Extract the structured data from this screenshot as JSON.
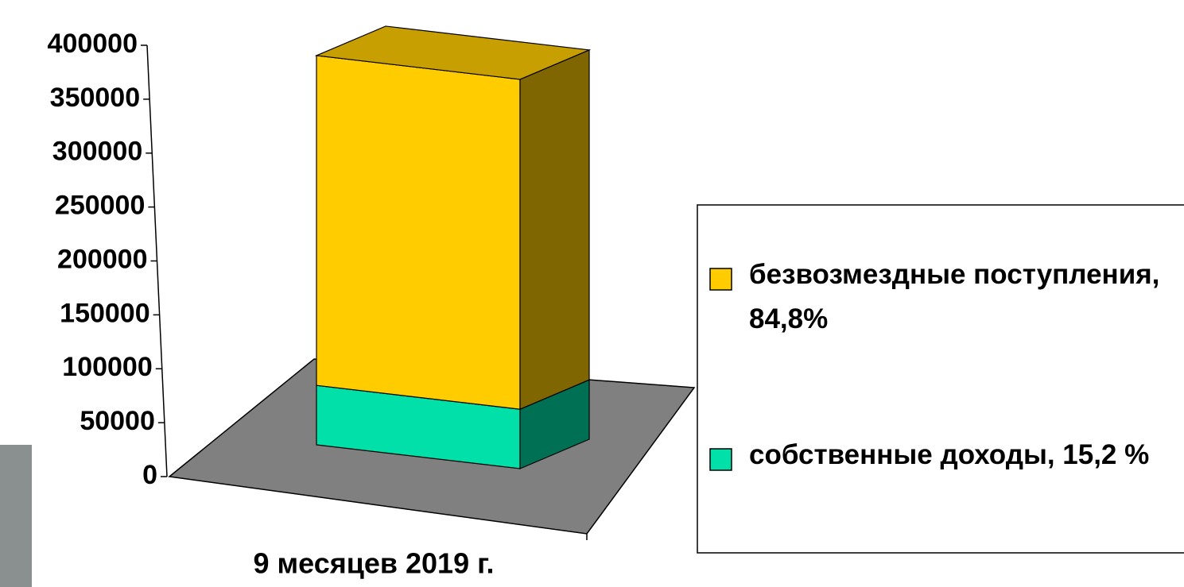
{
  "chart_data": {
    "type": "bar3d_stacked",
    "categories": [
      "9 месяцев 2019 г."
    ],
    "series": [
      {
        "name": "собственные доходы, 15,2 %",
        "color": "#00e0a8",
        "values": [
          58000
        ]
      },
      {
        "name": "безвозмездные поступления, 84,8%",
        "color": "#ffcc00",
        "values": [
          322000
        ]
      }
    ],
    "ylim": [
      0,
      400000
    ],
    "yticks": [
      0,
      50000,
      100000,
      150000,
      200000,
      250000,
      300000,
      350000,
      400000
    ]
  }
}
